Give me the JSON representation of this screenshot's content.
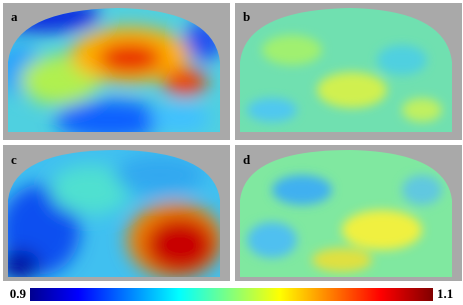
{
  "panels": [
    {
      "label": "a"
    },
    {
      "label": "b"
    },
    {
      "label": "c"
    },
    {
      "label": "d"
    }
  ],
  "colorbar": {
    "range": [
      0.9,
      1.1
    ],
    "ticks": [
      0.9,
      1.1
    ]
  }
}
